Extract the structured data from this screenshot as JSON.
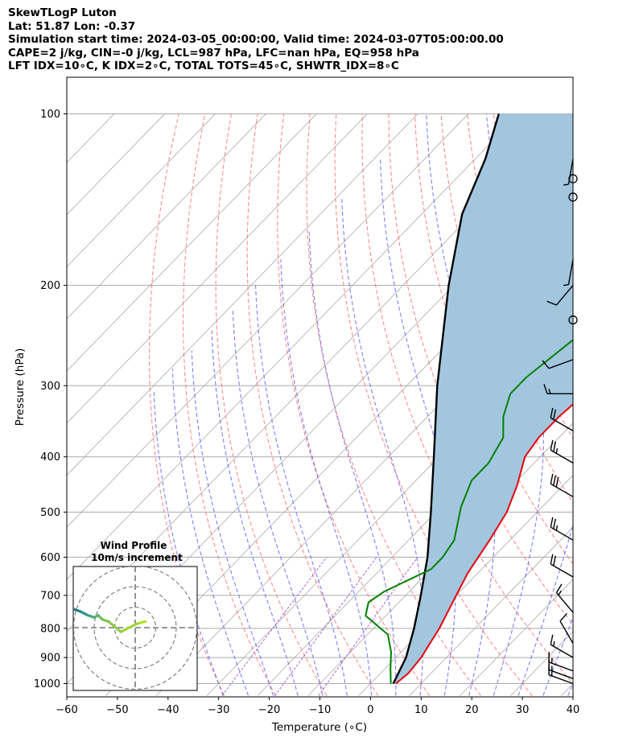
{
  "header": {
    "line1": "SkewTLogP Luton",
    "line2": "Lat: 51.87   Lon: -0.37",
    "line3": "Simulation start time: 2024-03-05_00:00:00, Valid time: 2024-03-07T05:00:00.00",
    "line4": "CAPE=2 j/kg, CIN=-0 j/kg, LCL=987 hPa, LFC=nan hPa, EQ=958 hPa",
    "line5": "LFT IDX=10∘C, K IDX=2∘C, TOTAL TOTS=45∘C, SHWTR_IDX=8∘C"
  },
  "chart_data": {
    "type": "line",
    "skew_type": "skew-T log-P",
    "xlabel": "Temperature (∘C)",
    "ylabel": "Pressure (hPa)",
    "xlim": [
      -60,
      40
    ],
    "ylim": [
      1050,
      100
    ],
    "x_ticks": [
      "−60",
      "−50",
      "−40",
      "−30",
      "−20",
      "−10",
      "0",
      "10",
      "20",
      "30",
      "40"
    ],
    "y_ticks": [
      "100",
      "200",
      "300",
      "400",
      "500",
      "600",
      "700",
      "800",
      "900",
      "1000"
    ],
    "y_scale": "log",
    "grid": true,
    "colors": {
      "temperature": "#e8000b",
      "dewpoint": "#008000",
      "parcel": "#000000",
      "cape_fill": "#a3c6df",
      "dry_adiabat": "#ff5555",
      "moist_adiabat": "#4444ff",
      "mixing_ratio": "#9933cc",
      "isotherm": "#aaaaaa"
    },
    "series": [
      {
        "name": "temperature",
        "points": [
          [
            5,
            1000
          ],
          [
            5.5,
            960
          ],
          [
            5,
            900
          ],
          [
            3,
            800
          ],
          [
            0,
            700
          ],
          [
            -2,
            640
          ],
          [
            -4,
            560
          ],
          [
            -6,
            500
          ],
          [
            -9,
            450
          ],
          [
            -13,
            400
          ],
          [
            -14,
            370
          ],
          [
            -14,
            340
          ],
          [
            -13,
            300
          ],
          [
            -13,
            270
          ],
          [
            -12,
            240
          ],
          [
            -12,
            230
          ],
          [
            -9,
            205
          ],
          [
            -7,
            190
          ],
          [
            -6,
            180
          ],
          [
            -3,
            160
          ],
          [
            1,
            145
          ],
          [
            5,
            130
          ],
          [
            9,
            115
          ],
          [
            13,
            100
          ]
        ]
      },
      {
        "name": "dewpoint",
        "points": [
          [
            4,
            1000
          ],
          [
            1,
            940
          ],
          [
            -2,
            880
          ],
          [
            -6,
            820
          ],
          [
            -14,
            760
          ],
          [
            -16,
            720
          ],
          [
            -15,
            690
          ],
          [
            -10,
            630
          ],
          [
            -10,
            600
          ],
          [
            -11,
            560
          ],
          [
            -16,
            490
          ],
          [
            -19,
            440
          ],
          [
            -19,
            410
          ],
          [
            -21,
            370
          ],
          [
            -25,
            340
          ],
          [
            -28,
            310
          ],
          [
            -28,
            290
          ],
          [
            -26,
            250
          ],
          [
            -23,
            230
          ],
          [
            -20,
            210
          ],
          [
            -18,
            190
          ],
          [
            -16,
            170
          ],
          [
            -6,
            145
          ],
          [
            6,
            115
          ],
          [
            12,
            100
          ]
        ]
      },
      {
        "name": "parcel",
        "points": [
          [
            4.5,
            1000
          ],
          [
            2,
            900
          ],
          [
            -2,
            800
          ],
          [
            -7,
            700
          ],
          [
            -13,
            600
          ],
          [
            -21,
            500
          ],
          [
            -31,
            400
          ],
          [
            -44,
            300
          ],
          [
            -61,
            200
          ],
          [
            -72,
            150
          ],
          [
            -78,
            120
          ],
          [
            -84,
            100
          ]
        ]
      }
    ],
    "wind_barbs": [
      {
        "pressure": 1000,
        "speed_kt": 15,
        "direction_deg": 290
      },
      {
        "pressure": 980,
        "speed_kt": 15,
        "direction_deg": 290
      },
      {
        "pressure": 950,
        "speed_kt": 15,
        "direction_deg": 290
      },
      {
        "pressure": 900,
        "speed_kt": 15,
        "direction_deg": 300
      },
      {
        "pressure": 850,
        "speed_kt": 10,
        "direction_deg": 330
      },
      {
        "pressure": 750,
        "speed_kt": 15,
        "direction_deg": 320
      },
      {
        "pressure": 650,
        "speed_kt": 20,
        "direction_deg": 300
      },
      {
        "pressure": 560,
        "speed_kt": 25,
        "direction_deg": 300
      },
      {
        "pressure": 470,
        "speed_kt": 30,
        "direction_deg": 300
      },
      {
        "pressure": 410,
        "speed_kt": 25,
        "direction_deg": 300
      },
      {
        "pressure": 360,
        "speed_kt": 20,
        "direction_deg": 300
      },
      {
        "pressure": 310,
        "speed_kt": 15,
        "direction_deg": 270
      },
      {
        "pressure": 270,
        "speed_kt": 10,
        "direction_deg": 250
      },
      {
        "pressure": 230,
        "speed_kt": 0,
        "direction_deg": 0
      },
      {
        "pressure": 200,
        "speed_kt": 10,
        "direction_deg": 220
      },
      {
        "pressure": 180,
        "speed_kt": 5,
        "direction_deg": 190
      },
      {
        "pressure": 140,
        "speed_kt": 0,
        "direction_deg": 0
      },
      {
        "pressure": 130,
        "speed_kt": 0,
        "direction_deg": 0
      },
      {
        "pressure": 120,
        "speed_kt": 5,
        "direction_deg": 190
      }
    ],
    "inset": {
      "title_line1": "Wind Profile",
      "title_line2": "10m/s increment",
      "rings_ms": [
        10,
        20
      ],
      "hodograph": [
        [
          5,
          3
        ],
        [
          1,
          2
        ],
        [
          -7,
          -2
        ],
        [
          -13,
          3
        ],
        [
          -16,
          4
        ],
        [
          -18,
          6
        ],
        [
          -20,
          5
        ],
        [
          -23,
          6
        ],
        [
          -24,
          6.5
        ],
        [
          -27,
          8
        ],
        [
          -30,
          9
        ],
        [
          -32,
          10
        ],
        [
          -34,
          11
        ],
        [
          -36,
          13
        ],
        [
          -38,
          14
        ],
        [
          -40,
          15
        ],
        [
          -41,
          15.5
        ]
      ],
      "hodo_color_start": "#3b0f4f",
      "hodo_color_mid": "#2a9d8f",
      "hodo_color_end": "#b5de2b"
    }
  }
}
